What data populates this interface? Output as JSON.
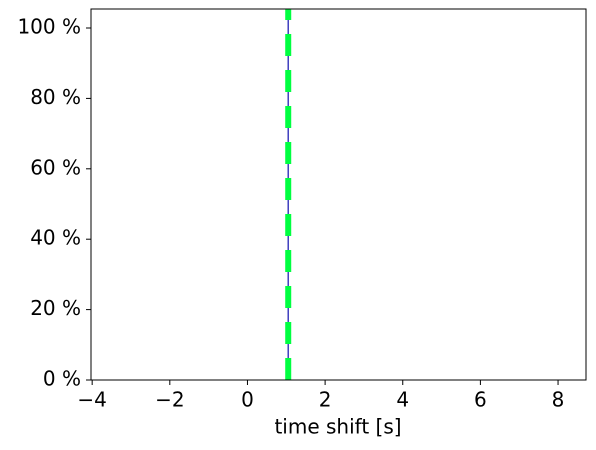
{
  "chart_data": {
    "type": "line",
    "x_label": "time shift [s]",
    "xlim": [
      -4.03,
      8.72
    ],
    "ylim": [
      0,
      105.4
    ],
    "xticks": [
      {
        "value": -4,
        "label": "−4"
      },
      {
        "value": -2,
        "label": "−2"
      },
      0,
      2,
      4,
      6,
      8
    ],
    "yticks": [
      {
        "value": 0,
        "label": "0 %"
      },
      {
        "value": 20,
        "label": "20 %"
      },
      {
        "value": 40,
        "label": "40 %"
      },
      {
        "value": 60,
        "label": "60 %"
      },
      {
        "value": 80,
        "label": "80 %"
      },
      {
        "value": 100,
        "label": "100 %"
      }
    ],
    "grid": false,
    "series": [
      {
        "color": "#3f3fbf",
        "linestyle": "solid",
        "x": [
          1.05,
          1.05
        ],
        "values": [
          0,
          105.4
        ]
      },
      {
        "color": "#00ff40",
        "linestyle": "dashed",
        "x": [
          1.05,
          1.05
        ],
        "values": [
          0,
          105.4
        ]
      }
    ]
  }
}
